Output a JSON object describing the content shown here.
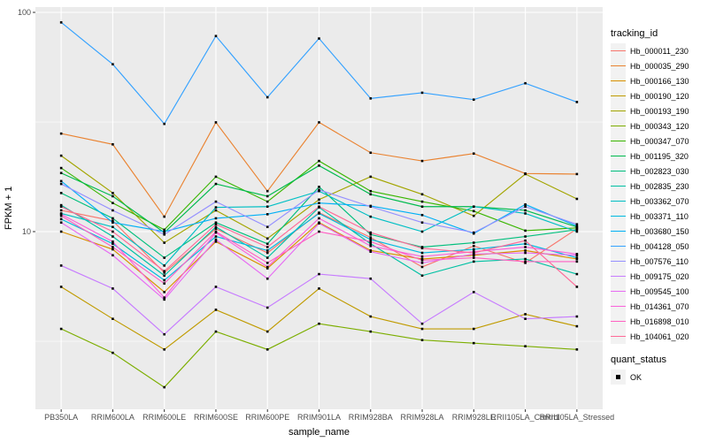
{
  "chart_data": {
    "type": "line",
    "title": "",
    "xlabel": "sample_name",
    "ylabel": "FPKM + 1",
    "y_scale": "log10",
    "y_ticks": [
      100,
      10
    ],
    "y_minor_ticks": [
      31.6,
      3.16
    ],
    "ylim": [
      1.55,
      106
    ],
    "grid": true,
    "legend_position": "right",
    "legend_title": "tracking_id",
    "legend2": {
      "title": "quant_status",
      "entries": [
        {
          "label": "OK"
        }
      ]
    },
    "point_shape": "black-square",
    "categories": [
      "PB350LA",
      "RRIM600LA",
      "RRIM600LE",
      "RRIM600SE",
      "RRIM600PE",
      "RRIM901LA",
      "RRIM928BA",
      "RRIM928LA",
      "RRIM928LE",
      "RRII105LA_Control",
      "RRII105LA_Stressed"
    ],
    "series": [
      {
        "name": "Hb_000011_230",
        "color": "#F8766D",
        "values": [
          12.5,
          11.2,
          6.5,
          10.3,
          8.0,
          12.2,
          9.4,
          6.9,
          8.6,
          7.2,
          10.3
        ]
      },
      {
        "name": "Hb_000035_290",
        "color": "#EA8331",
        "values": [
          28,
          25,
          11.7,
          31.5,
          15.3,
          31.5,
          22.9,
          21,
          22.7,
          18.4,
          18.3
        ]
      },
      {
        "name": "Hb_000166_130",
        "color": "#D89000",
        "values": [
          10,
          8.3,
          5.3,
          9,
          6.8,
          11,
          8.2,
          7.5,
          7.8,
          8.2,
          7.5
        ]
      },
      {
        "name": "Hb_000190_120",
        "color": "#C09B00",
        "values": [
          5.6,
          4,
          2.9,
          4.4,
          3.5,
          5.5,
          4.1,
          3.6,
          3.6,
          4.2,
          3.7
        ]
      },
      {
        "name": "Hb_000193_190",
        "color": "#A3A500",
        "values": [
          22.2,
          15,
          8.9,
          12.5,
          9.3,
          14,
          17.8,
          14.8,
          11.8,
          18.3,
          14.1
        ]
      },
      {
        "name": "Hb_000343_120",
        "color": "#7CAE00",
        "values": [
          3.6,
          2.8,
          1.95,
          3.5,
          2.9,
          3.8,
          3.5,
          3.2,
          3.1,
          3.0,
          2.9
        ]
      },
      {
        "name": "Hb_000347_070",
        "color": "#39B600",
        "values": [
          19.5,
          13.5,
          10.2,
          17.8,
          13.7,
          21,
          15.3,
          13.7,
          12.4,
          10.1,
          10.4
        ]
      },
      {
        "name": "Hb_001195_320",
        "color": "#00BB4E",
        "values": [
          18.5,
          14.5,
          9.9,
          16.5,
          14.5,
          20,
          14.8,
          13,
          13,
          12.5,
          10.5
        ]
      },
      {
        "name": "Hb_002823_030",
        "color": "#00BF7D",
        "values": [
          15,
          11.5,
          7.6,
          11,
          8.8,
          16,
          9.7,
          8.5,
          8.9,
          9.5,
          10.2
        ]
      },
      {
        "name": "Hb_002835_230",
        "color": "#00C1A3",
        "values": [
          13.2,
          9.5,
          6.3,
          10.5,
          7.6,
          12.9,
          8.8,
          6.3,
          7.3,
          7.5,
          6.4
        ]
      },
      {
        "name": "Hb_003362_070",
        "color": "#00BFC4",
        "values": [
          12.1,
          10.5,
          7,
          12.9,
          13,
          15.3,
          11.7,
          10,
          13,
          12.1,
          10
        ]
      },
      {
        "name": "Hb_003371_110",
        "color": "#00BAE0",
        "values": [
          11.4,
          8.8,
          6,
          9.5,
          8.2,
          12.1,
          9.2,
          8,
          8.3,
          8.8,
          7.6
        ]
      },
      {
        "name": "Hb_003680_150",
        "color": "#00B0F6",
        "values": [
          17,
          11,
          10,
          11.5,
          12,
          13.5,
          13.1,
          11.9,
          9.8,
          13.3,
          10.6
        ]
      },
      {
        "name": "Hb_004128_050",
        "color": "#35A2FF",
        "values": [
          90,
          58,
          31,
          78,
          41,
          76,
          40.5,
          43,
          40,
          47.5,
          39
        ]
      },
      {
        "name": "Hb_007576_110",
        "color": "#9590FF",
        "values": [
          16.5,
          12.5,
          9.7,
          13.7,
          10.5,
          15.5,
          13,
          11,
          9.9,
          13,
          10.8
        ]
      },
      {
        "name": "Hb_009175_020",
        "color": "#C77CFF",
        "values": [
          7,
          5.5,
          3.4,
          5.6,
          4.5,
          6.4,
          6.1,
          3.8,
          5.3,
          4.0,
          4.1
        ]
      },
      {
        "name": "Hb_009545_100",
        "color": "#E76BF3",
        "values": [
          11,
          7.8,
          4.9,
          9.2,
          6.1,
          10.9,
          8.1,
          7.2,
          7.9,
          8.0,
          7.8
        ]
      },
      {
        "name": "Hb_014361_070",
        "color": "#FA62DB",
        "values": [
          12,
          9,
          5,
          9.9,
          6.9,
          11.5,
          8.6,
          7.7,
          8.1,
          8.5,
          7.9
        ]
      },
      {
        "name": "Hb_016898_010",
        "color": "#FF61C3",
        "values": [
          11.8,
          8.5,
          5.8,
          10,
          7.2,
          10,
          9,
          7.4,
          7.6,
          7.3,
          7.3
        ]
      },
      {
        "name": "Hb_104061_020",
        "color": "#FF6A98",
        "values": [
          13,
          10,
          6.6,
          10.8,
          8.5,
          13,
          9.9,
          8.4,
          8.0,
          9.1,
          5.6
        ]
      }
    ],
    "style": {
      "panel_bg": "#EBEBEB",
      "grid_color": "#FFFFFF",
      "tick_mark_color": "#333333",
      "tick_label_color": "#4D4D4D",
      "point_color": "#000000",
      "legend_key_bg": "#F2F2F2"
    }
  }
}
